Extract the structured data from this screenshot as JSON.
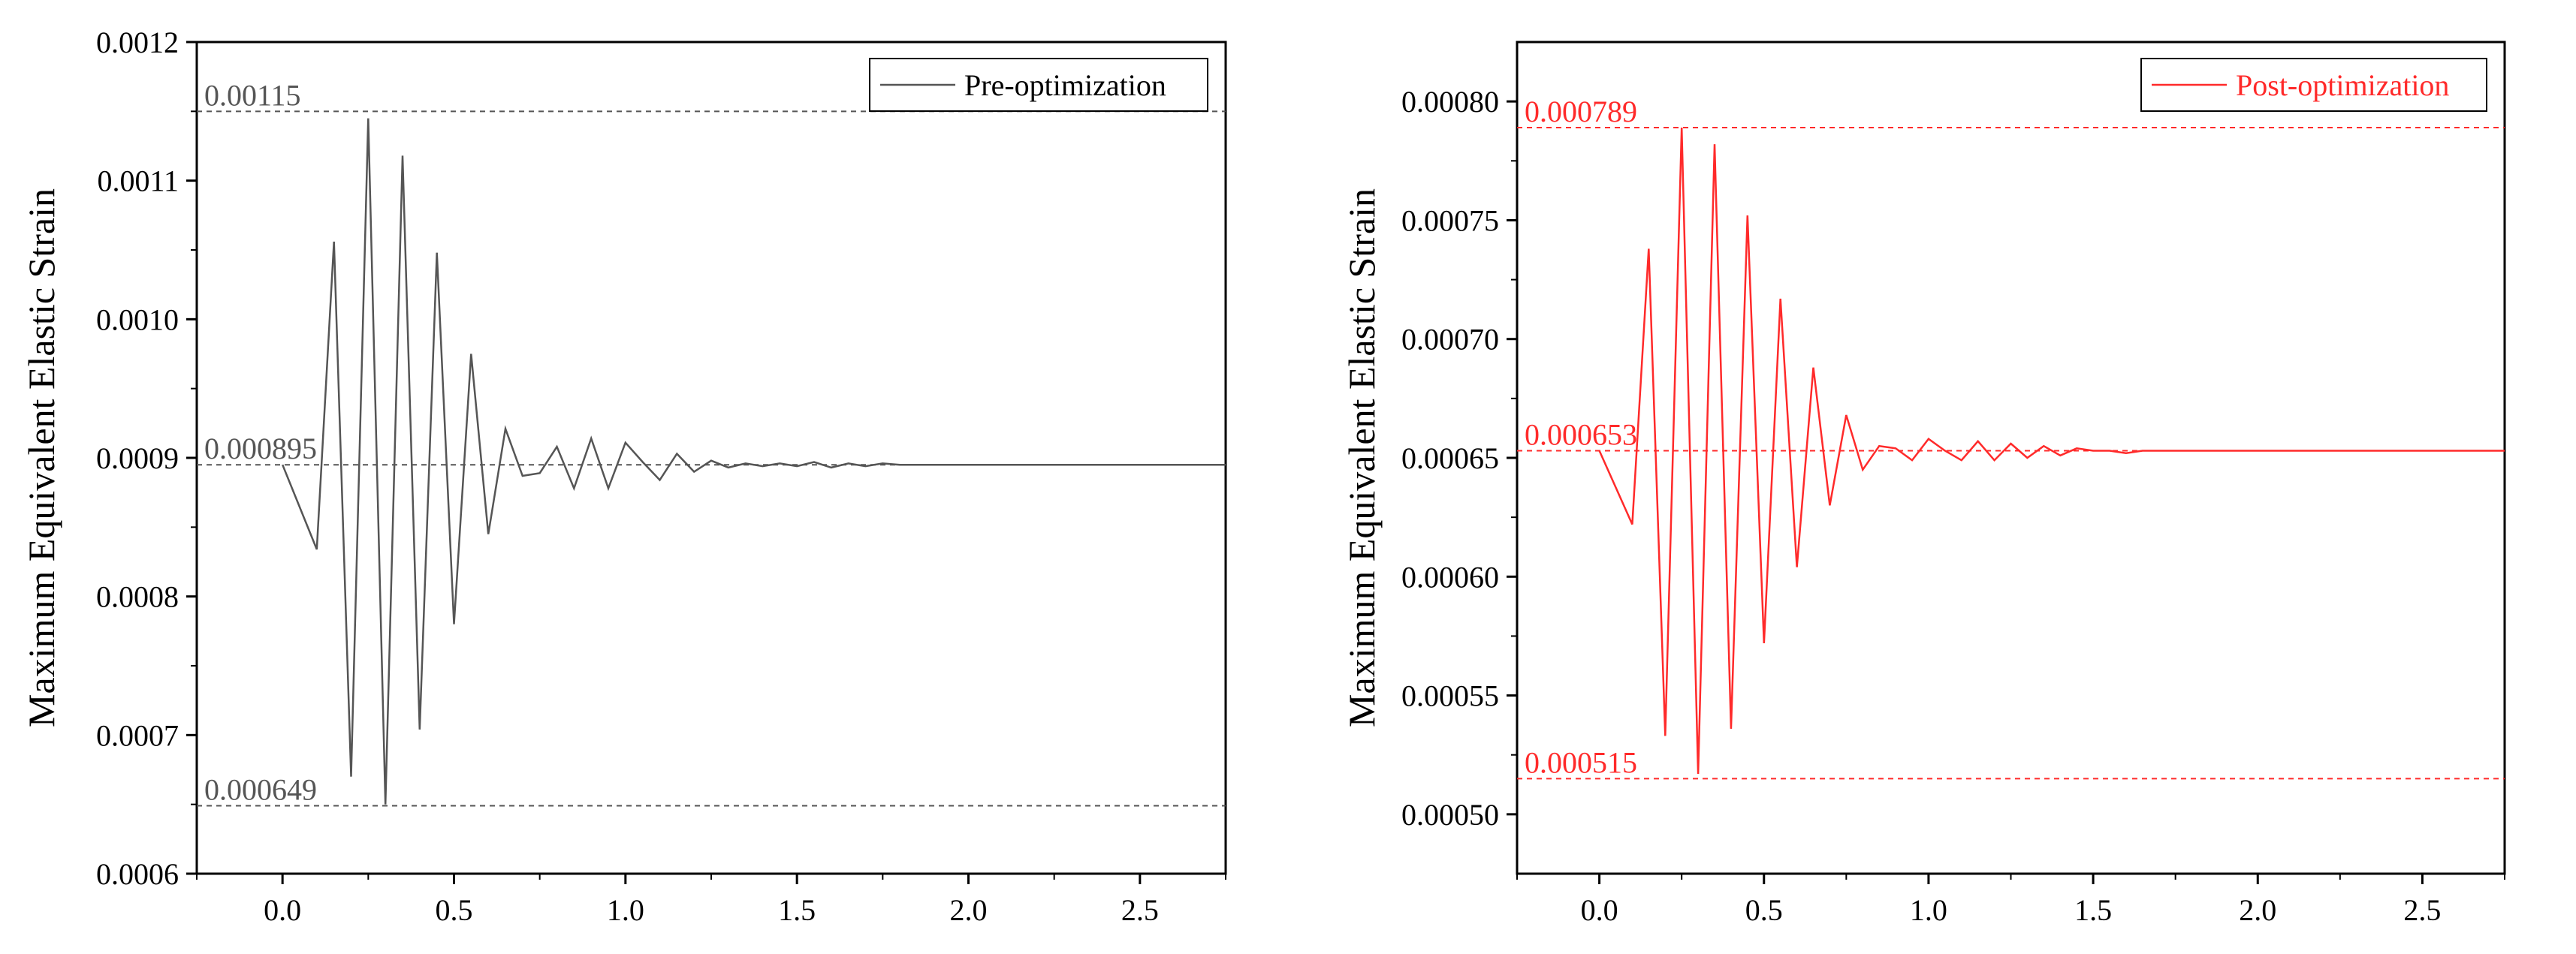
{
  "chart_data": [
    {
      "type": "line",
      "ylabel": "Maximum Equivalent Elastic Strain",
      "xlabel": "",
      "xlim": [
        -0.25,
        2.75
      ],
      "ylim": [
        0.0006,
        0.0012
      ],
      "x_ticks": [
        "0.0",
        "0.5",
        "1.0",
        "1.5",
        "2.0",
        "2.5"
      ],
      "y_ticks": [
        "0.0006",
        "0.0007",
        "0.0008",
        "0.0009",
        "0.0010",
        "0.0011",
        "0.0012"
      ],
      "grid": false,
      "legend_position": "top-right",
      "line_color": "#555555",
      "series": [
        {
          "name": "Pre-optimization",
          "x": [
            0.0,
            0.1,
            0.15,
            0.2,
            0.25,
            0.3,
            0.35,
            0.4,
            0.45,
            0.5,
            0.55,
            0.6,
            0.65,
            0.7,
            0.75,
            0.8,
            0.85,
            0.9,
            0.95,
            1.0,
            1.05,
            1.1,
            1.15,
            1.2,
            1.25,
            1.3,
            1.35,
            1.4,
            1.45,
            1.5,
            1.55,
            1.6,
            1.65,
            1.7,
            1.75,
            1.8,
            1.85,
            1.9,
            2.0,
            2.1,
            2.2,
            2.3,
            2.4,
            2.5,
            2.6,
            2.75
          ],
          "y": [
            0.000895,
            0.000834,
            0.001056,
            0.00067,
            0.001145,
            0.00065,
            0.001118,
            0.000704,
            0.001048,
            0.00078,
            0.000975,
            0.000845,
            0.000921,
            0.000887,
            0.000889,
            0.000908,
            0.000878,
            0.000914,
            0.000878,
            0.000911,
            0.000897,
            0.000884,
            0.000903,
            0.00089,
            0.000898,
            0.000893,
            0.000896,
            0.000894,
            0.000896,
            0.000894,
            0.000897,
            0.000893,
            0.000896,
            0.000894,
            0.000896,
            0.000895,
            0.000895,
            0.000895,
            0.000895,
            0.000895,
            0.000895,
            0.000895,
            0.000895,
            0.000895,
            0.000895,
            0.000895
          ]
        }
      ],
      "annotations": [
        {
          "label": "0.00115",
          "value": 0.00115
        },
        {
          "label": "0.000895",
          "value": 0.000895
        },
        {
          "label": "0.000649",
          "value": 0.000649
        }
      ],
      "annotation_color": "#555555"
    },
    {
      "type": "line",
      "ylabel": "Maximum Equivalent Elastic Strain",
      "xlabel": "",
      "xlim": [
        -0.25,
        2.75
      ],
      "ylim": [
        0.000475,
        0.000825
      ],
      "x_ticks": [
        "0.0",
        "0.5",
        "1.0",
        "1.5",
        "2.0",
        "2.5"
      ],
      "y_ticks": [
        "0.00050",
        "0.00055",
        "0.00060",
        "0.00065",
        "0.00070",
        "0.00075",
        "0.00080"
      ],
      "grid": false,
      "legend_position": "top-right",
      "line_color": "#ff2a2a",
      "series": [
        {
          "name": "Post-optimization",
          "x": [
            0.0,
            0.1,
            0.15,
            0.2,
            0.25,
            0.3,
            0.35,
            0.4,
            0.45,
            0.5,
            0.55,
            0.6,
            0.65,
            0.7,
            0.75,
            0.8,
            0.85,
            0.9,
            0.95,
            1.0,
            1.05,
            1.1,
            1.15,
            1.2,
            1.25,
            1.3,
            1.35,
            1.4,
            1.45,
            1.5,
            1.55,
            1.6,
            1.65,
            1.7,
            1.75,
            1.8,
            1.85,
            1.9,
            2.0,
            2.1,
            2.2,
            2.3,
            2.4,
            2.5,
            2.6,
            2.75
          ],
          "y": [
            0.000653,
            0.000622,
            0.000738,
            0.000533,
            0.000789,
            0.000517,
            0.000782,
            0.000536,
            0.000752,
            0.000572,
            0.000717,
            0.000604,
            0.000688,
            0.00063,
            0.000668,
            0.000645,
            0.000655,
            0.000654,
            0.000649,
            0.000658,
            0.000653,
            0.000649,
            0.000657,
            0.000649,
            0.000656,
            0.00065,
            0.000655,
            0.000651,
            0.000654,
            0.000653,
            0.000653,
            0.000652,
            0.000653,
            0.000653,
            0.000653,
            0.000653,
            0.000653,
            0.000653,
            0.000653,
            0.000653,
            0.000653,
            0.000653,
            0.000653,
            0.000653,
            0.000653,
            0.000653
          ]
        }
      ],
      "annotations": [
        {
          "label": "0.000789",
          "value": 0.000789
        },
        {
          "label": "0.000653",
          "value": 0.000653
        },
        {
          "label": "0.000515",
          "value": 0.000515
        }
      ],
      "annotation_color": "#ff2a2a"
    }
  ]
}
